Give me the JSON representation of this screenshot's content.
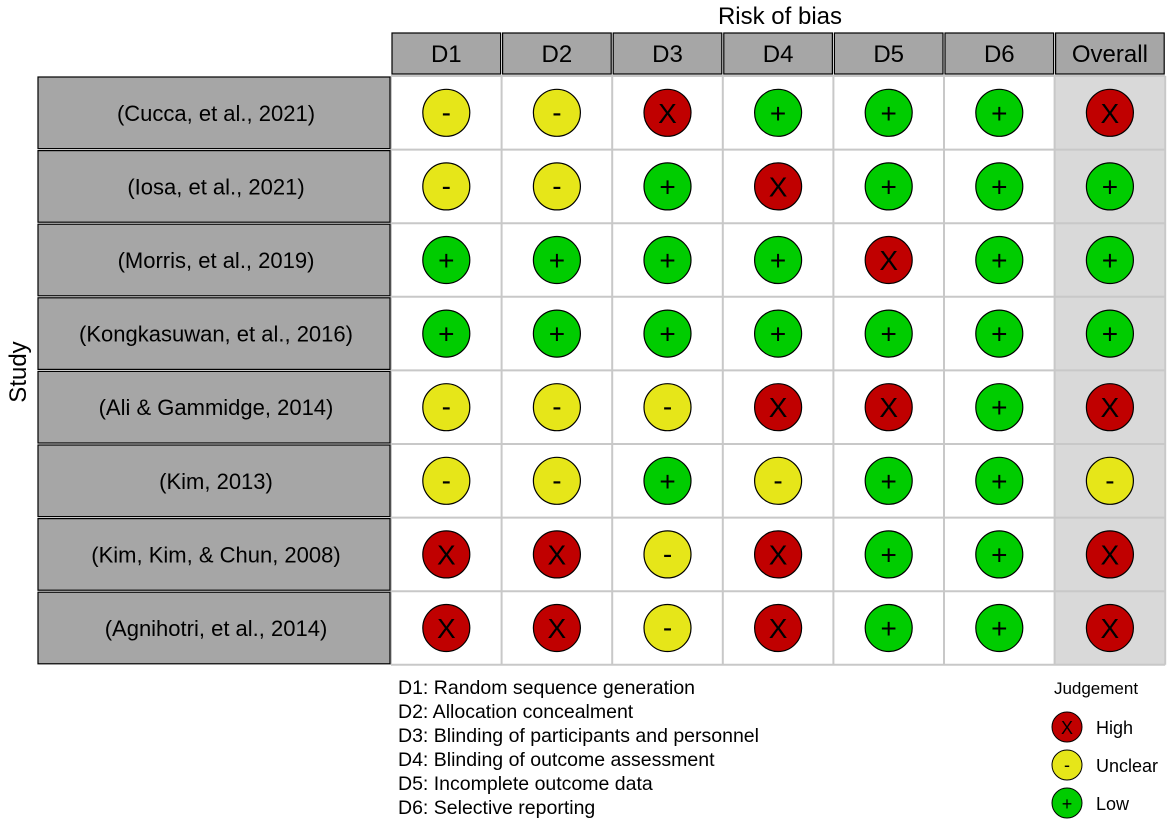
{
  "chart_data": {
    "type": "table",
    "title": "Risk of bias",
    "ylabel": "Study",
    "columns": [
      "D1",
      "D2",
      "D3",
      "D4",
      "D5",
      "D6",
      "Overall"
    ],
    "studies": [
      "(Cucca, et al., 2021)",
      "(Iosa, et al., 2021)",
      "(Morris, et al., 2019)",
      "(Kongkasuwan, et al., 2016)",
      "(Ali & Gammidge, 2014)",
      "(Kim, 2013)",
      "(Kim, Kim, & Chun, 2008)",
      "(Agnihotri, et al., 2014)"
    ],
    "judgements": [
      [
        "unclear",
        "unclear",
        "high",
        "low",
        "low",
        "low",
        "high"
      ],
      [
        "unclear",
        "unclear",
        "low",
        "high",
        "low",
        "low",
        "low"
      ],
      [
        "low",
        "low",
        "low",
        "low",
        "high",
        "low",
        "low"
      ],
      [
        "low",
        "low",
        "low",
        "low",
        "low",
        "low",
        "low"
      ],
      [
        "unclear",
        "unclear",
        "unclear",
        "high",
        "high",
        "low",
        "high"
      ],
      [
        "unclear",
        "unclear",
        "low",
        "unclear",
        "low",
        "low",
        "unclear"
      ],
      [
        "high",
        "high",
        "unclear",
        "high",
        "low",
        "low",
        "high"
      ],
      [
        "high",
        "high",
        "unclear",
        "high",
        "low",
        "low",
        "high"
      ]
    ],
    "domain_notes": [
      "D1: Random sequence generation",
      "D2: Allocation concealment",
      "D3: Blinding of participants and personnel",
      "D4: Blinding of outcome assessment",
      "D5: Incomplete outcome data",
      "D6: Selective reporting"
    ],
    "legend": {
      "title": "Judgement",
      "position": "bottom-right",
      "items": [
        {
          "key": "high",
          "label": "High"
        },
        {
          "key": "unclear",
          "label": "Unclear"
        },
        {
          "key": "low",
          "label": "Low"
        }
      ]
    },
    "symbols": {
      "high": "X",
      "unclear": "-",
      "low": "+"
    },
    "colors": {
      "high": "#c00000",
      "unclear": "#e6e619",
      "low": "#00cc00",
      "header_fill": "#a6a6a6",
      "overall_bg": "#d9d9d9",
      "cell_bg": "#ffffff",
      "grid": "#c8c8c8"
    }
  }
}
